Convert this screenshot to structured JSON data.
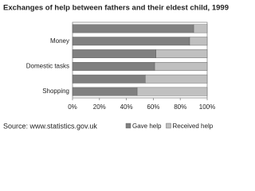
{
  "chart_data": {
    "type": "stacked-bar-horizontal",
    "title": "Exchanges of  help between fathers and their eldest child, 1999",
    "source": "Source: www.statistics.gov.uk",
    "categories": [
      null,
      "Money",
      null,
      "Domestic tasks",
      null,
      "Shopping"
    ],
    "series": [
      {
        "name": "Gave help",
        "color": "#808080",
        "values": [
          90,
          87,
          62,
          61,
          54,
          48
        ]
      },
      {
        "name": "Received help",
        "color": "#c0c0c0",
        "values": [
          10,
          13,
          38,
          39,
          46,
          52
        ]
      }
    ],
    "xlim": [
      0,
      100
    ],
    "xticks": [
      {
        "value": 0,
        "label": "0%"
      },
      {
        "value": 20,
        "label": "20%"
      },
      {
        "value": 40,
        "label": "40%"
      },
      {
        "value": 60,
        "label": "60%"
      },
      {
        "value": 80,
        "label": "80%"
      },
      {
        "value": 100,
        "label": "100%"
      }
    ],
    "legend": "bottom-right"
  }
}
